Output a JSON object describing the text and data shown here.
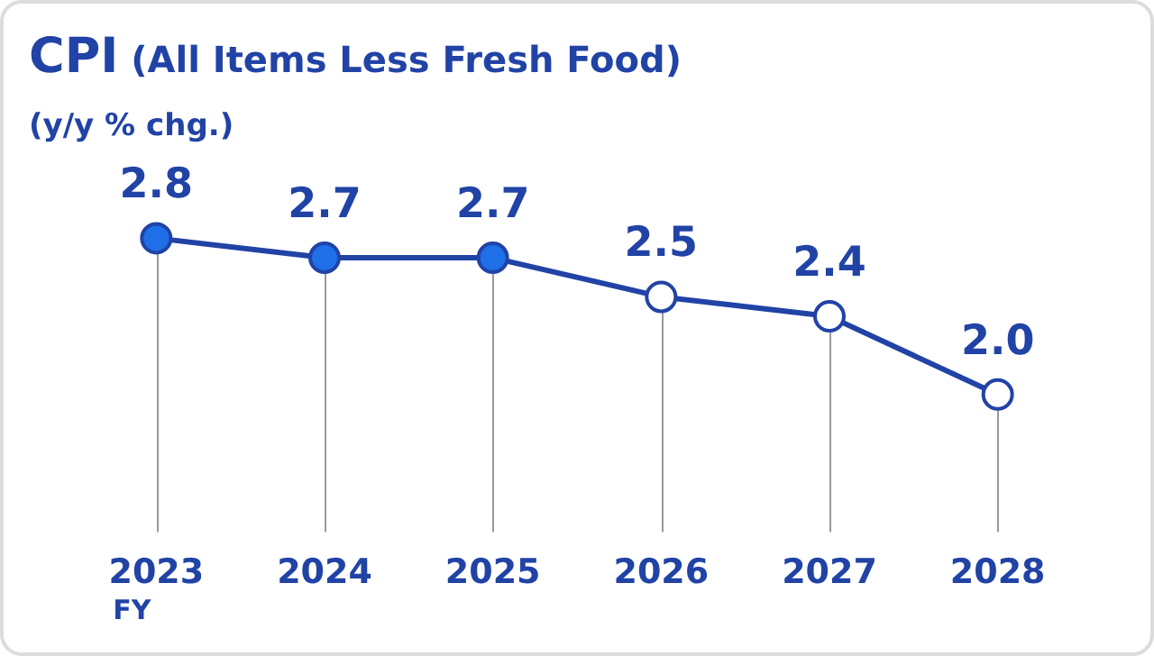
{
  "chart_data": {
    "type": "line",
    "title": "CPI (All Items Less Fresh Food)",
    "subtitle": "(y/y % chg.)",
    "categories": [
      "2023",
      "2024",
      "2025",
      "2026",
      "2027",
      "2028"
    ],
    "series": [
      {
        "color": "#2143a6",
        "colors": [
          "#1f6fe8",
          "#1f6fe8",
          "#1f6fe8",
          "#ffffff",
          "#ffffff",
          "#ffffff"
        ],
        "values": [
          2.8,
          2.7,
          2.7,
          2.5,
          2.4,
          2.0
        ],
        "value_labels": [
          "2.8",
          "2.7",
          "2.7",
          "2.5",
          "2.4",
          "2.0"
        ]
      }
    ],
    "annotations": [
      "FY"
    ],
    "grid": "x",
    "marker": "circle",
    "line_style": "solid",
    "legend": false
  }
}
